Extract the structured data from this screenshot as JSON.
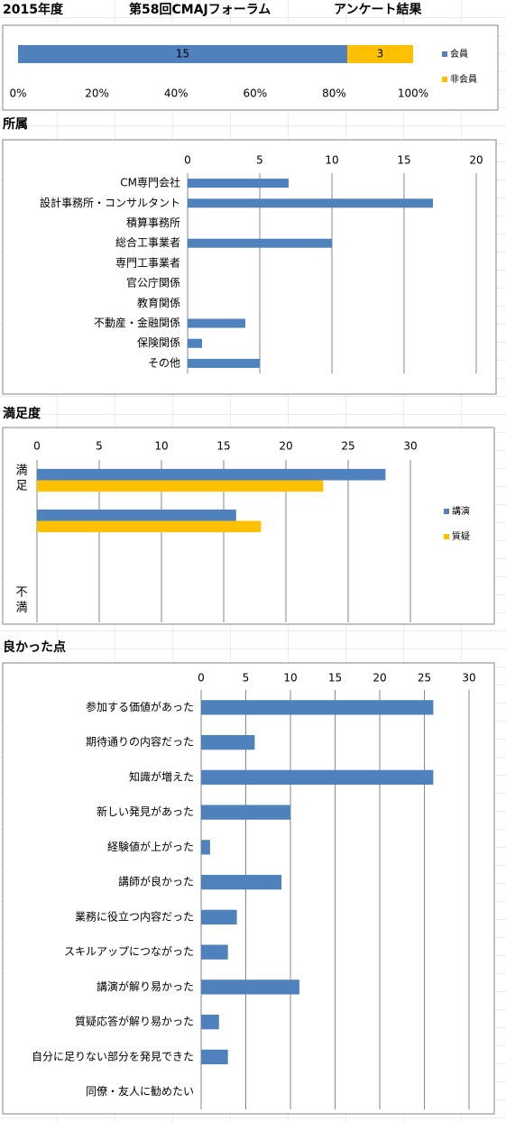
{
  "header": {
    "year": "2015年度",
    "event": "第58回CMAJフォーラム",
    "subject": "アンケート結果"
  },
  "chart_data": [
    {
      "type": "bar",
      "orientation": "horizontal",
      "percent_stacked": true,
      "series": [
        {
          "name": "会員",
          "color": "#4f81bd",
          "values": [
            15
          ]
        },
        {
          "name": "非会員",
          "color": "#ffc000",
          "values": [
            3
          ]
        }
      ],
      "xlim": [
        0,
        100
      ],
      "xticks": [
        {
          "value": 0,
          "label": "0%"
        },
        {
          "value": 20,
          "label": "20%"
        },
        {
          "value": 40,
          "label": "40%"
        },
        {
          "value": 60,
          "label": "60%"
        },
        {
          "value": 80,
          "label": "80%"
        },
        {
          "value": 100,
          "label": "100%"
        }
      ],
      "data_labels": true,
      "grid": false,
      "legend": "right",
      "axis_position": "bottom"
    },
    {
      "type": "bar",
      "orientation": "horizontal",
      "title": "所属",
      "categories": [
        "CM専門会社",
        "設計事務所・コンサルタント",
        "積算事務所",
        "総合工事業者",
        "専門工事業者",
        "官公庁関係",
        "教育関係",
        "不動産・金融関係",
        "保険関係",
        "その他"
      ],
      "series": [
        {
          "color": "#4f81bd",
          "values": [
            7,
            17,
            0,
            10,
            0,
            0,
            0,
            4,
            1,
            5
          ]
        }
      ],
      "xlim": [
        0,
        20
      ],
      "xticks": [
        0,
        5,
        10,
        15,
        20
      ],
      "grid": true,
      "axis_position": "top"
    },
    {
      "type": "bar",
      "orientation": "horizontal",
      "title": "満足度",
      "categories": [
        "満足",
        null,
        null,
        "不満"
      ],
      "series": [
        {
          "name": "講演",
          "color": "#4f81bd",
          "values": [
            28,
            16,
            0,
            0
          ]
        },
        {
          "name": "質疑",
          "color": "#ffc000",
          "values": [
            23,
            18,
            0,
            0
          ]
        }
      ],
      "xlim": [
        0,
        30
      ],
      "xticks": [
        0,
        5,
        10,
        15,
        20,
        25,
        30
      ],
      "grid": true,
      "legend": "right",
      "axis_position": "top",
      "vertical_category_labels": true
    },
    {
      "type": "bar",
      "orientation": "horizontal",
      "title": "良かった点",
      "categories": [
        "参加する価値があった",
        "期待通りの内容だった",
        "知識が増えた",
        "新しい発見があった",
        "経験値が上がった",
        "講師が良かった",
        "業務に役立つ内容だった",
        "スキルアップにつながった",
        "講演が解り易かった",
        "質疑応答が解り易かった",
        "自分に足りない部分を発見できた",
        "同僚・友人に勧めたい"
      ],
      "series": [
        {
          "color": "#4f81bd",
          "values": [
            26,
            6,
            26,
            10,
            1,
            9,
            4,
            3,
            11,
            2,
            3,
            0
          ]
        }
      ],
      "xlim": [
        0,
        30
      ],
      "xticks": [
        0,
        5,
        10,
        15,
        20,
        25,
        30
      ],
      "grid": true,
      "axis_position": "top"
    }
  ]
}
